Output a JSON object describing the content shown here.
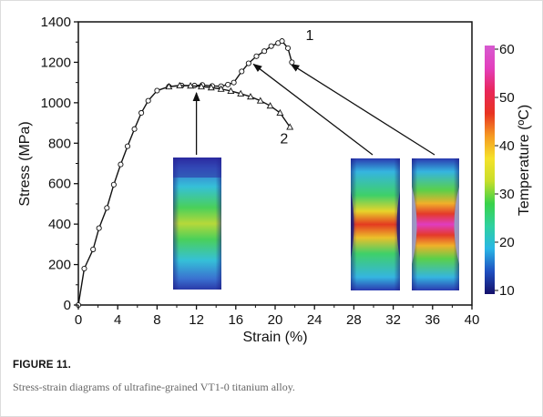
{
  "figure": {
    "label": "FIGURE 11.",
    "caption": "Stress-strain diagrams of ultrafine-grained VT1-0 titanium alloy."
  },
  "chart_data": {
    "type": "line",
    "xlabel": "Strain (%)",
    "ylabel": "Stress (MPa)",
    "xlim": [
      0,
      40
    ],
    "ylim": [
      0,
      1400
    ],
    "xticks": [
      "0",
      "4",
      "8",
      "12",
      "16",
      "20",
      "24",
      "28",
      "32",
      "36",
      "40"
    ],
    "yticks": [
      "0",
      "200",
      "400",
      "600",
      "800",
      "1000",
      "1200",
      "1400"
    ],
    "grid": false,
    "series": [
      {
        "name": "1",
        "marker": "circle",
        "x": [
          0,
          0.6,
          1.5,
          2.1,
          2.9,
          3.6,
          4.3,
          5.0,
          5.7,
          6.4,
          7.1,
          8.0,
          9.2,
          10.5,
          11.8,
          12.6,
          13.6,
          14.5,
          15.2,
          15.8,
          16.6,
          17.3,
          18.1,
          18.9,
          19.6,
          20.3,
          20.7,
          21.3,
          21.7
        ],
        "y": [
          0,
          180,
          275,
          380,
          480,
          595,
          695,
          785,
          870,
          950,
          1010,
          1060,
          1080,
          1085,
          1085,
          1088,
          1083,
          1082,
          1090,
          1100,
          1155,
          1195,
          1230,
          1255,
          1280,
          1295,
          1305,
          1270,
          1200
        ]
      },
      {
        "name": "2",
        "marker": "triangle",
        "x": [
          9.2,
          10.3,
          11.4,
          12.5,
          13.5,
          14.5,
          15.5,
          16.5,
          17.5,
          18.5,
          19.5,
          20.5,
          21.5
        ],
        "y": [
          1080,
          1085,
          1084,
          1080,
          1075,
          1068,
          1058,
          1045,
          1030,
          1010,
          985,
          950,
          880
        ]
      }
    ],
    "curve_labels": [
      {
        "text": "1",
        "x": 23.1,
        "y": 1310
      },
      {
        "text": "2",
        "x": 20.5,
        "y": 800
      }
    ],
    "colorbar": {
      "label": "Temperature (ºC)",
      "range": [
        10,
        60
      ],
      "ticks": [
        "10",
        "20",
        "30",
        "40",
        "50",
        "60"
      ],
      "colors": [
        "#14106a",
        "#1f4fc0",
        "#29b6e6",
        "#2fd1a0",
        "#39d24a",
        "#c8de2a",
        "#f5e22a",
        "#f59a22",
        "#e83321",
        "#e8265a",
        "#e33fbd",
        "#d65ad0"
      ]
    },
    "thermal_images": [
      {
        "strain": 12,
        "max_temp": 32,
        "arrow_to": {
          "x": 12,
          "y": 1085
        }
      },
      {
        "strain": 29.5,
        "max_temp": 48,
        "arrow_to": {
          "x": 17.8,
          "y": 1200
        }
      },
      {
        "strain": 36,
        "max_temp": 58,
        "arrow_to": {
          "x": 21.6,
          "y": 1200
        }
      }
    ]
  }
}
